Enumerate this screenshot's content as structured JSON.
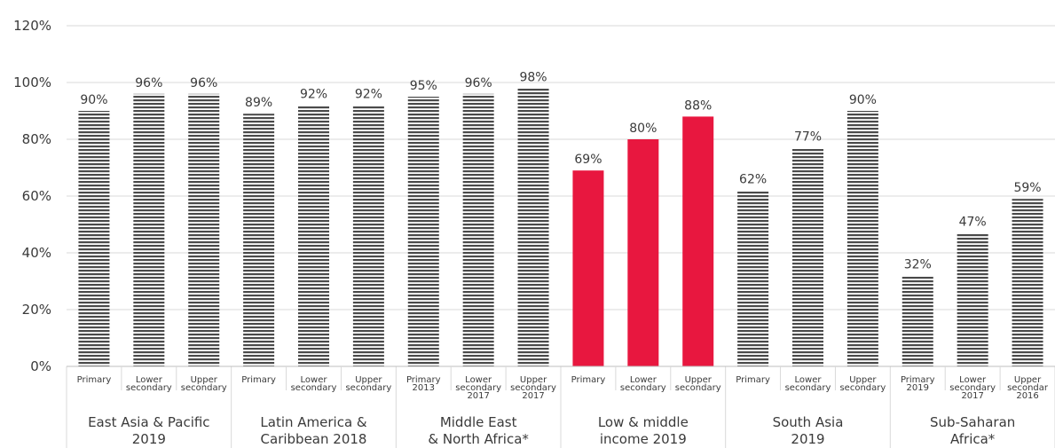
{
  "chart_data": {
    "type": "bar",
    "title": "",
    "ylim": [
      0,
      120
    ],
    "yticks": [
      "0%",
      "20%",
      "40%",
      "60%",
      "80%",
      "100%",
      "120%"
    ],
    "grid": true,
    "legend": "none",
    "colors": {
      "pattern_bar": "#4a4a4a",
      "highlight_bar": "#e8173f",
      "grid": "#d9d9d9",
      "text": "#3a3a3a"
    },
    "groups": [
      {
        "label": [
          "East Asia & Pacific",
          "2019"
        ],
        "highlight": false,
        "bars": [
          {
            "sub": [
              "Primary"
            ],
            "value": 90,
            "label": "90%"
          },
          {
            "sub": [
              "Lower",
              "secondary"
            ],
            "value": 96,
            "label": "96%"
          },
          {
            "sub": [
              "Upper",
              "secondary"
            ],
            "value": 96,
            "label": "96%"
          }
        ]
      },
      {
        "label": [
          "Latin America &",
          "Caribbean 2018"
        ],
        "highlight": false,
        "bars": [
          {
            "sub": [
              "Primary"
            ],
            "value": 89,
            "label": "89%"
          },
          {
            "sub": [
              "Lower",
              "secondary"
            ],
            "value": 92,
            "label": "92%"
          },
          {
            "sub": [
              "Upper",
              "secondary"
            ],
            "value": 92,
            "label": "92%"
          }
        ]
      },
      {
        "label": [
          "Middle East",
          "& North Africa*"
        ],
        "highlight": false,
        "bars": [
          {
            "sub": [
              "Primary",
              "2013"
            ],
            "value": 95,
            "label": "95%"
          },
          {
            "sub": [
              "Lower",
              "secondary",
              "2017"
            ],
            "value": 96,
            "label": "96%"
          },
          {
            "sub": [
              "Upper",
              "secondary",
              "2017"
            ],
            "value": 98,
            "label": "98%"
          }
        ]
      },
      {
        "label": [
          "Low & middle",
          "income 2019"
        ],
        "highlight": true,
        "bars": [
          {
            "sub": [
              "Primary"
            ],
            "value": 69,
            "label": "69%"
          },
          {
            "sub": [
              "Lower",
              "secondary"
            ],
            "value": 80,
            "label": "80%"
          },
          {
            "sub": [
              "Upper",
              "secondary"
            ],
            "value": 88,
            "label": "88%"
          }
        ]
      },
      {
        "label": [
          "South Asia",
          "2019"
        ],
        "highlight": false,
        "bars": [
          {
            "sub": [
              "Primary"
            ],
            "value": 62,
            "label": "62%"
          },
          {
            "sub": [
              "Lower",
              "secondary"
            ],
            "value": 77,
            "label": "77%"
          },
          {
            "sub": [
              "Upper",
              "secondary"
            ],
            "value": 90,
            "label": "90%"
          }
        ]
      },
      {
        "label": [
          "Sub-Saharan",
          "Africa*"
        ],
        "highlight": false,
        "bars": [
          {
            "sub": [
              "Primary",
              "2019"
            ],
            "value": 32,
            "label": "32%"
          },
          {
            "sub": [
              "Lower",
              "secondary",
              "2017"
            ],
            "value": 47,
            "label": "47%"
          },
          {
            "sub": [
              "Upper",
              "secondar",
              "2016"
            ],
            "value": 59,
            "label": "59%"
          }
        ]
      }
    ]
  }
}
